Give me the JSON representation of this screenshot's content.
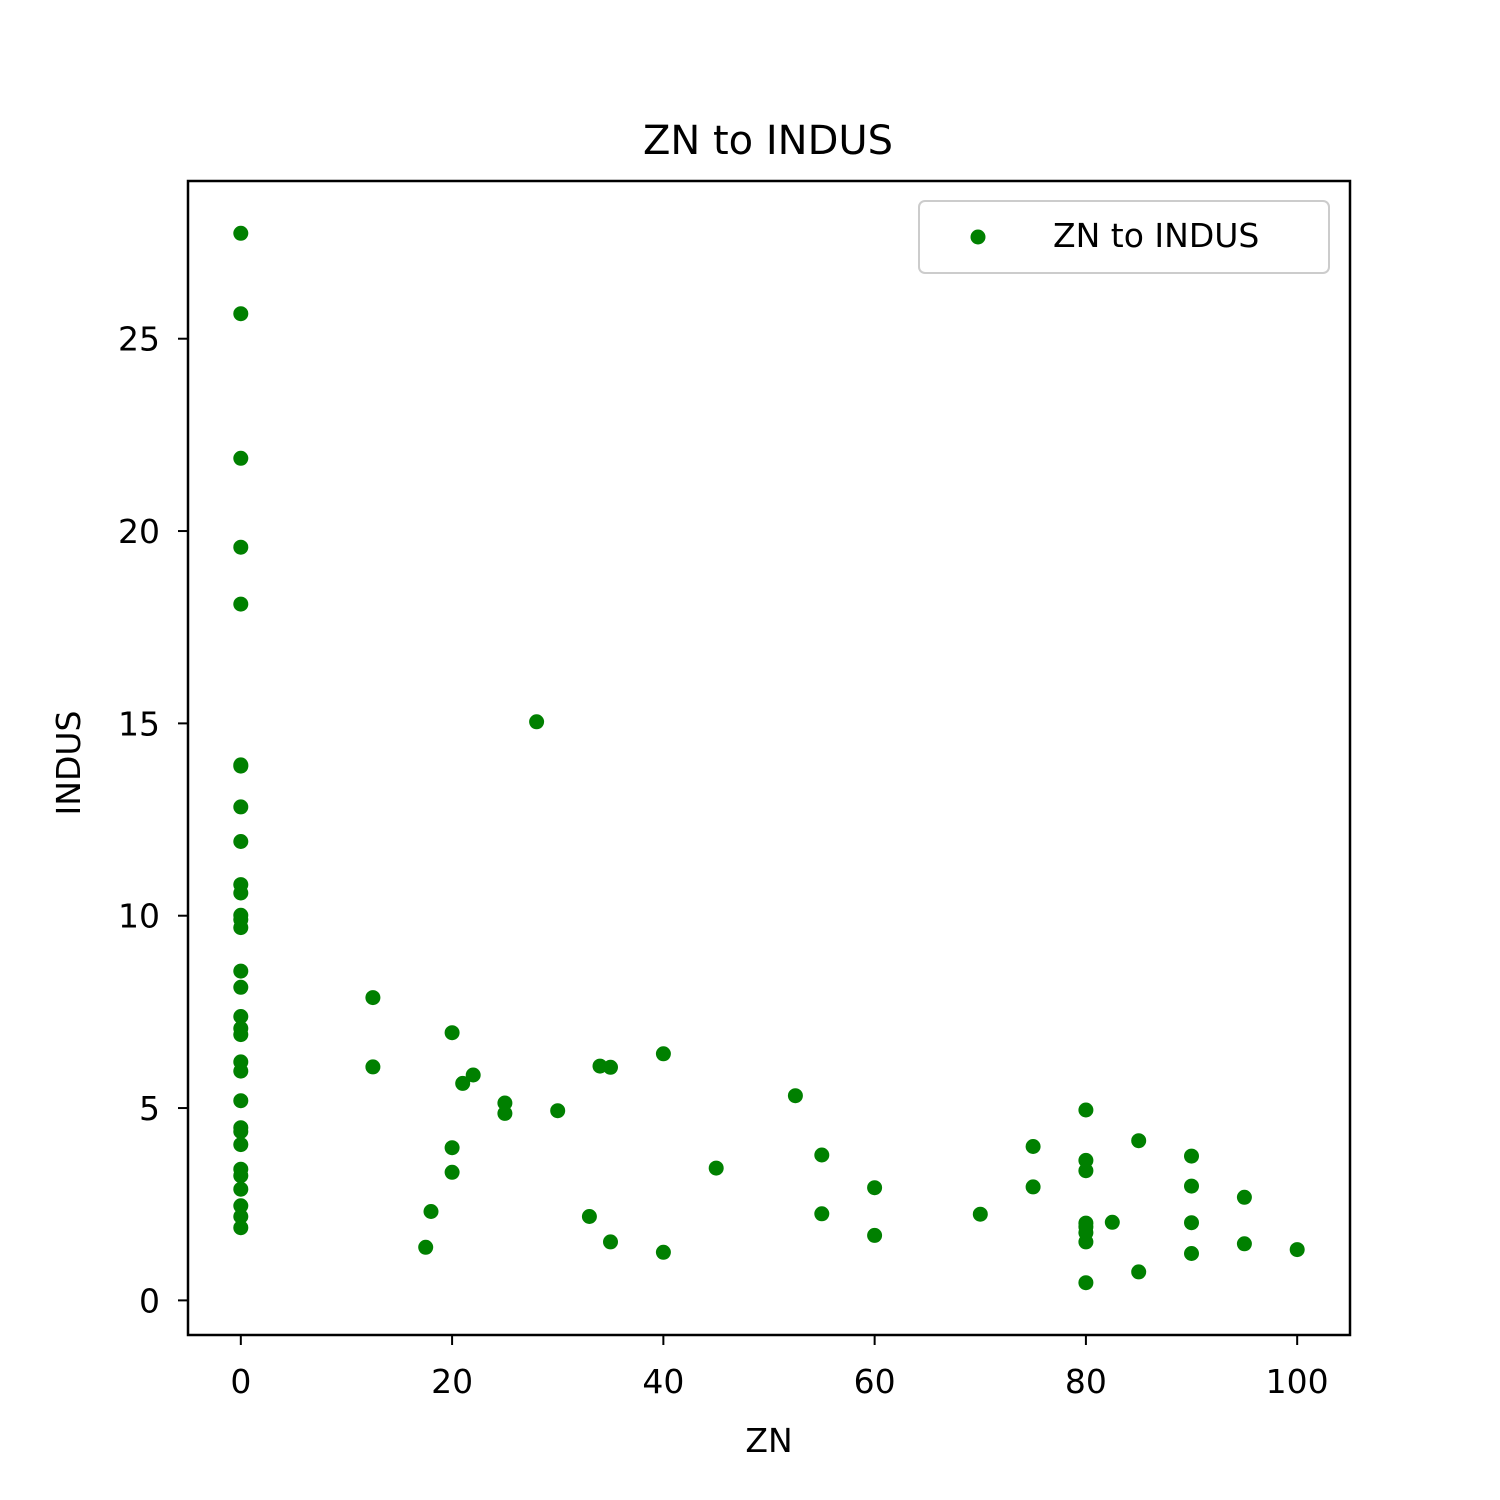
{
  "chart_data": {
    "type": "scatter",
    "title": "ZN to INDUS",
    "xlabel": "ZN",
    "ylabel": "INDUS",
    "xlim": [
      -5,
      105
    ],
    "ylim": [
      -0.9,
      29.1
    ],
    "xticks": [
      0,
      20,
      40,
      60,
      80,
      100
    ],
    "yticks": [
      0,
      5,
      10,
      15,
      20,
      25
    ],
    "grid": false,
    "legend_position": "top-right",
    "colors": {
      "points": "#008000",
      "axes": "#000000",
      "legend_border": "#cccccc"
    },
    "series": [
      {
        "name": "ZN to INDUS",
        "points": [
          [
            0,
            27.74
          ],
          [
            0,
            25.65
          ],
          [
            0,
            21.89
          ],
          [
            0,
            19.58
          ],
          [
            0,
            18.1
          ],
          [
            0,
            13.92
          ],
          [
            0,
            13.89
          ],
          [
            0,
            12.83
          ],
          [
            0,
            11.93
          ],
          [
            0,
            10.81
          ],
          [
            0,
            10.59
          ],
          [
            0,
            10.01
          ],
          [
            0,
            9.9
          ],
          [
            0,
            9.69
          ],
          [
            0,
            8.56
          ],
          [
            0,
            8.14
          ],
          [
            0,
            7.38
          ],
          [
            0,
            7.07
          ],
          [
            0,
            6.91
          ],
          [
            0,
            6.2
          ],
          [
            0,
            5.96
          ],
          [
            0,
            5.19
          ],
          [
            0,
            4.49
          ],
          [
            0,
            4.39
          ],
          [
            0,
            4.05
          ],
          [
            0,
            3.41
          ],
          [
            0,
            3.24
          ],
          [
            0,
            2.89
          ],
          [
            0,
            2.46
          ],
          [
            0,
            2.18
          ],
          [
            0,
            1.89
          ],
          [
            12.5,
            7.87
          ],
          [
            12.5,
            6.07
          ],
          [
            17.5,
            1.38
          ],
          [
            18,
            2.31
          ],
          [
            20,
            6.96
          ],
          [
            20,
            3.97
          ],
          [
            20,
            3.33
          ],
          [
            21,
            5.64
          ],
          [
            22,
            5.86
          ],
          [
            25,
            5.13
          ],
          [
            25,
            4.86
          ],
          [
            28,
            15.04
          ],
          [
            30,
            4.93
          ],
          [
            33,
            2.18
          ],
          [
            34,
            6.09
          ],
          [
            35,
            6.06
          ],
          [
            35,
            1.52
          ],
          [
            40,
            6.41
          ],
          [
            40,
            1.25
          ],
          [
            45,
            3.44
          ],
          [
            52.5,
            5.32
          ],
          [
            55,
            3.78
          ],
          [
            55,
            2.25
          ],
          [
            60,
            2.93
          ],
          [
            60,
            1.69
          ],
          [
            70,
            2.24
          ],
          [
            75,
            4.0
          ],
          [
            75,
            2.95
          ],
          [
            80,
            4.95
          ],
          [
            80,
            3.64
          ],
          [
            80,
            3.37
          ],
          [
            80,
            1.91
          ],
          [
            80,
            2.01
          ],
          [
            80,
            1.76
          ],
          [
            80,
            1.52
          ],
          [
            80,
            0.46
          ],
          [
            82.5,
            2.03
          ],
          [
            85,
            4.15
          ],
          [
            85,
            0.74
          ],
          [
            90,
            3.75
          ],
          [
            90,
            2.97
          ],
          [
            90,
            2.02
          ],
          [
            90,
            1.22
          ],
          [
            95,
            2.68
          ],
          [
            95,
            1.47
          ],
          [
            100,
            1.32
          ]
        ]
      }
    ]
  }
}
